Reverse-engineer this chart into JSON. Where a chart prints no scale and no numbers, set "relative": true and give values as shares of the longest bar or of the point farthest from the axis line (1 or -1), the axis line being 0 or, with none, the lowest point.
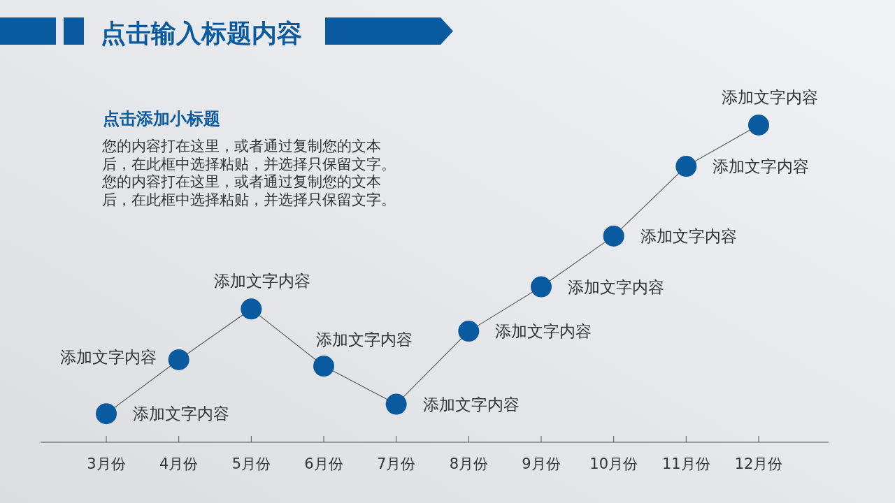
{
  "chart_data": {
    "type": "line",
    "title": "点击输入标题内容",
    "subtitle": "点击添加小标题",
    "categories": [
      "3月份",
      "4月份",
      "5月份",
      "6月份",
      "7月份",
      "8月份",
      "9月份",
      "10月份",
      "11月份",
      "12月份"
    ],
    "series": [
      {
        "color": "#0a5aa0",
        "values": [
          0.09,
          0.26,
          0.42,
          0.24,
          0.12,
          0.35,
          0.49,
          0.65,
          0.87,
          1
        ]
      }
    ],
    "relative": true,
    "marker": "circle",
    "line_style": "solid",
    "annotations": [
      "您的内容打在这里，或者通过复制您的文本",
      "后，在此框中选择粘贴，并选择只保留文字。",
      "您的内容打在这里，或者通过复制您的文本",
      "后，在此框中选择粘贴，并选择只保留文字。",
      {
        "text": "添加文字内容",
        "x": "3月份",
        "y": 0.09
      },
      {
        "text": "添加文字内容",
        "x": "4月份",
        "y": 0.26
      },
      {
        "text": "添加文字内容",
        "x": "5月份",
        "y": 0.42
      },
      {
        "text": "添加文字内容",
        "x": "6月份",
        "y": 0.24
      },
      {
        "text": "添加文字内容",
        "x": "7月份",
        "y": 0.12
      },
      {
        "text": "添加文字内容",
        "x": "8月份",
        "y": 0.35
      },
      {
        "text": "添加文字内容",
        "x": "9月份",
        "y": 0.49
      },
      {
        "text": "添加文字内容",
        "x": "10月份",
        "y": 0.65
      },
      {
        "text": "添加文字内容",
        "x": "11月份",
        "y": 0.87
      },
      {
        "text": "添加文字内容",
        "x": "12月份",
        "y": 1
      }
    ]
  }
}
